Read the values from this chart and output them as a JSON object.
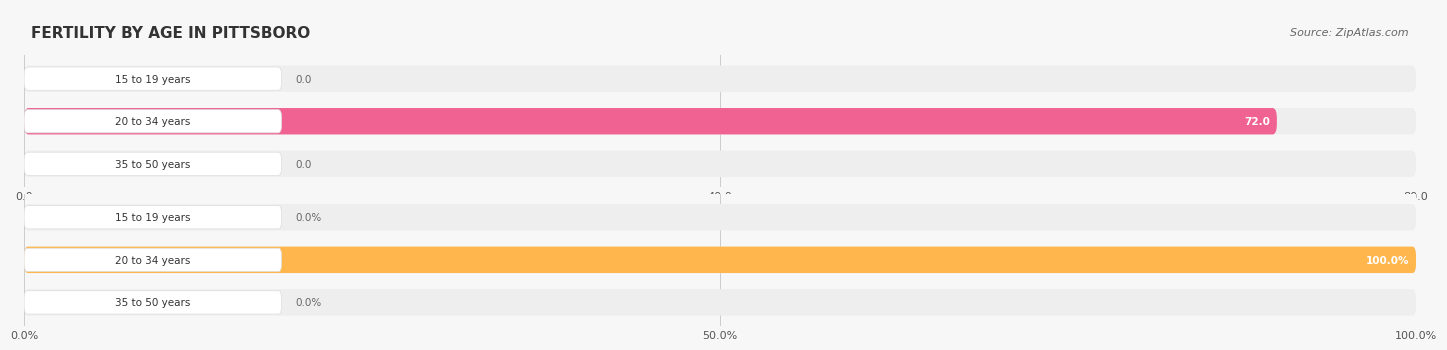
{
  "title": "FERTILITY BY AGE IN PITTSBORO",
  "source": "Source: ZipAtlas.com",
  "background_color": "#f7f7f7",
  "top_chart": {
    "categories": [
      "15 to 19 years",
      "20 to 34 years",
      "35 to 50 years"
    ],
    "values": [
      0.0,
      72.0,
      0.0
    ],
    "bar_color": "#f06292",
    "bar_bg_color": "#f8bbd0",
    "track_bg": "#eeeeee",
    "xlim": [
      0,
      80
    ],
    "xticks": [
      0.0,
      40.0,
      80.0
    ],
    "xtick_labels": [
      "0.0",
      "40.0",
      "80.0"
    ],
    "value_labels": [
      "0.0",
      "72.0",
      "0.0"
    ]
  },
  "bottom_chart": {
    "categories": [
      "15 to 19 years",
      "20 to 34 years",
      "35 to 50 years"
    ],
    "values": [
      0.0,
      100.0,
      0.0
    ],
    "bar_color": "#ffb74d",
    "bar_bg_color": "#ffcc80",
    "track_bg": "#eeeeee",
    "xlim": [
      0,
      100
    ],
    "xticks": [
      0.0,
      50.0,
      100.0
    ],
    "xtick_labels": [
      "0.0%",
      "50.0%",
      "100.0%"
    ],
    "value_labels": [
      "0.0%",
      "100.0%",
      "0.0%"
    ]
  }
}
